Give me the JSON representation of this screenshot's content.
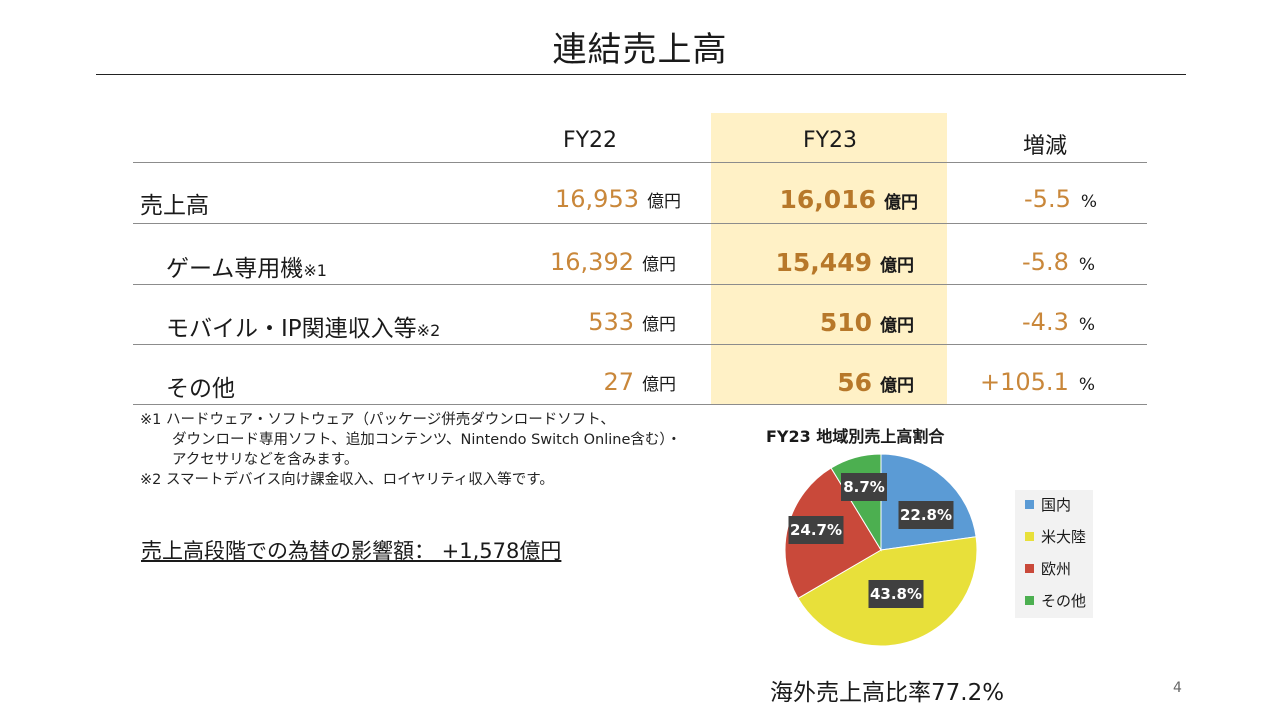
{
  "page_title": "連結売上高",
  "table": {
    "columns": [
      "FY22",
      "FY23",
      "増減"
    ],
    "rows": [
      {
        "label": "売上高",
        "note": "",
        "fy22": "16,953",
        "fy22_unit": "億円",
        "fy23": "16,016",
        "fy23_unit": "億円",
        "change": "-5.5",
        "change_unit": "%"
      },
      {
        "label": "ゲーム専用機",
        "note": "※1",
        "fy22": "16,392",
        "fy22_unit": "億円",
        "fy23": "15,449",
        "fy23_unit": "億円",
        "change": "-5.8",
        "change_unit": "%"
      },
      {
        "label": "モバイル・IP関連収入等",
        "note": "※2",
        "fy22": "533",
        "fy22_unit": "億円",
        "fy23": "510",
        "fy23_unit": "億円",
        "change": "-4.3",
        "change_unit": "%"
      },
      {
        "label": "その他",
        "note": "",
        "fy22": "27",
        "fy22_unit": "億円",
        "fy23": "56",
        "fy23_unit": "億円",
        "change": "+105.1",
        "change_unit": "%"
      }
    ]
  },
  "footnotes": [
    "※1 ハードウェア・ソフトウェア（パッケージ併売ダウンロードソフト、",
    "ダウンロード専用ソフト、追加コンテンツ、Nintendo Switch Online含む）・",
    "アクセサリなどを含みます。",
    "※2 スマートデバイス向け課金収入、ロイヤリティ収入等です。"
  ],
  "fx_impact": "売上高段階での為替の影響額：  +1,578億円",
  "chart_data": {
    "type": "pie",
    "title": "FY23 地域別売上高割合",
    "categories": [
      "国内",
      "米大陸",
      "欧州",
      "その他"
    ],
    "values": [
      22.8,
      43.8,
      24.7,
      8.7
    ],
    "labels": [
      "22.8%",
      "43.8%",
      "24.7%",
      "8.7%"
    ],
    "colors": [
      "#5b9bd5",
      "#e8e03a",
      "#c9493a",
      "#4caf50"
    ],
    "legend_position": "right"
  },
  "overseas_ratio": "海外売上高比率77.2%",
  "page_number": "4"
}
